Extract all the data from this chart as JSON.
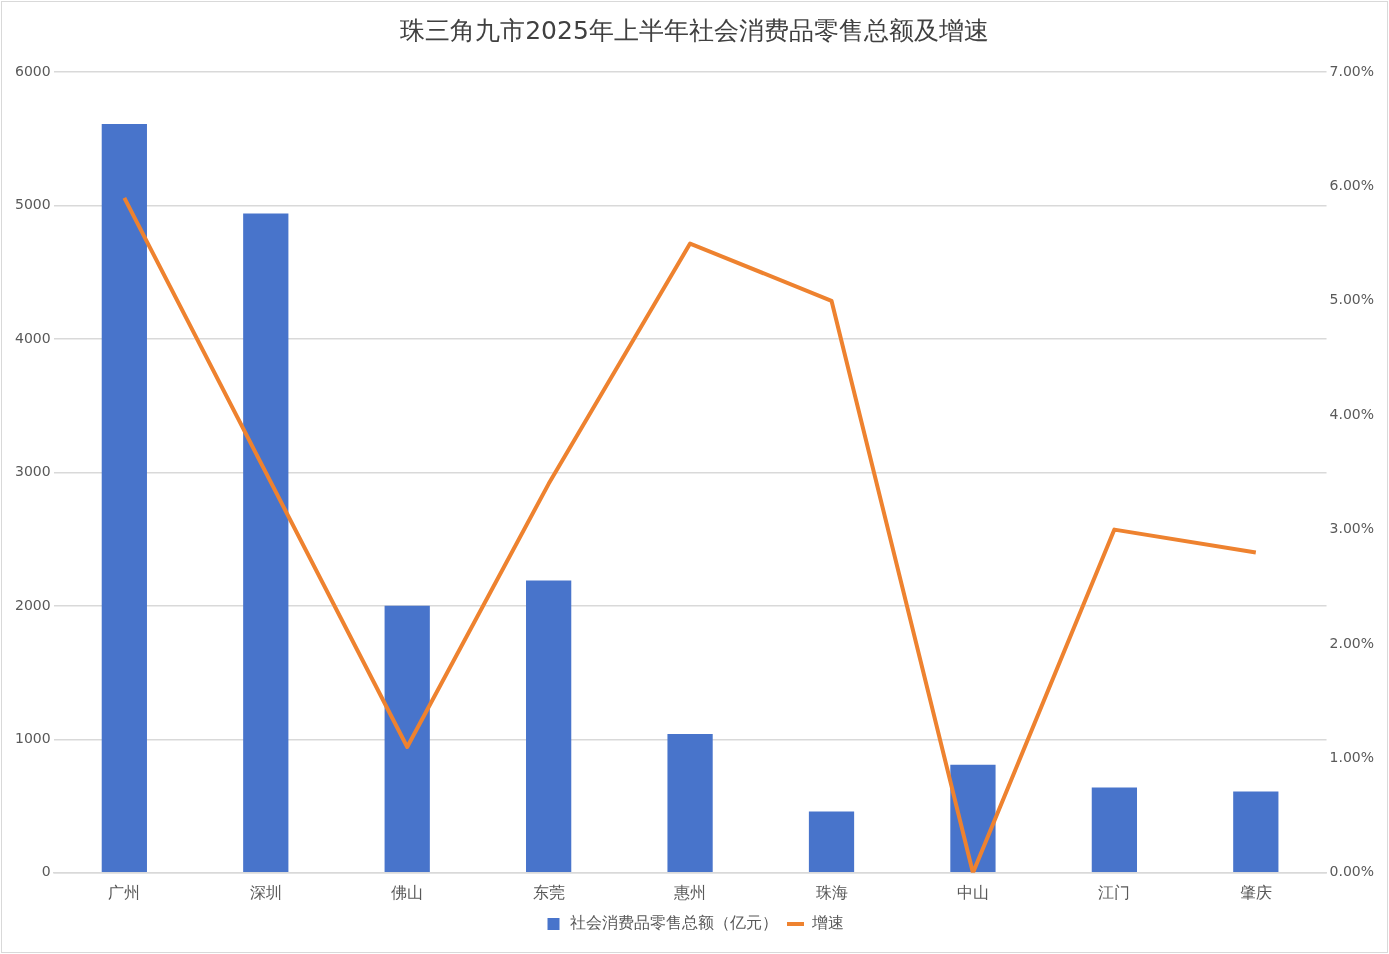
{
  "chart_data": {
    "type": "bar",
    "title": "珠三角九市2025年上半年社会消费品零售总额及增速",
    "categories": [
      "广州",
      "深圳",
      "佛山",
      "东莞",
      "惠州",
      "珠海",
      "中山",
      "江门",
      "肇庆"
    ],
    "series": [
      {
        "name": "社会消费品零售总额（亿元）",
        "color": "#4874cb",
        "values": [
          5610,
          4940,
          2000,
          2190,
          1040,
          460,
          810,
          640,
          610
        ]
      },
      {
        "name": "增速",
        "type": "line",
        "axis": "y2",
        "color": "#ee822f",
        "marker": "none",
        "values": [
          5.9,
          3.5,
          1.1,
          3.4,
          5.5,
          5.0,
          0.0,
          3.0,
          2.8
        ]
      }
    ],
    "ylim": [
      0,
      6000
    ],
    "yticks": [
      0,
      1000,
      2000,
      3000,
      4000,
      5000,
      6000
    ],
    "y2lim": [
      0,
      7
    ],
    "y2ticks": [
      {
        "value": 0,
        "label": "0.00%"
      },
      {
        "value": 1,
        "label": "1.00%"
      },
      {
        "value": 2,
        "label": "2.00%"
      },
      {
        "value": 3,
        "label": "3.00%"
      },
      {
        "value": 4,
        "label": "4.00%"
      },
      {
        "value": 5,
        "label": "5.00%"
      },
      {
        "value": 6,
        "label": "6.00%"
      },
      {
        "value": 7,
        "label": "7.00%"
      }
    ],
    "grid": "y",
    "legend": "bottom"
  }
}
